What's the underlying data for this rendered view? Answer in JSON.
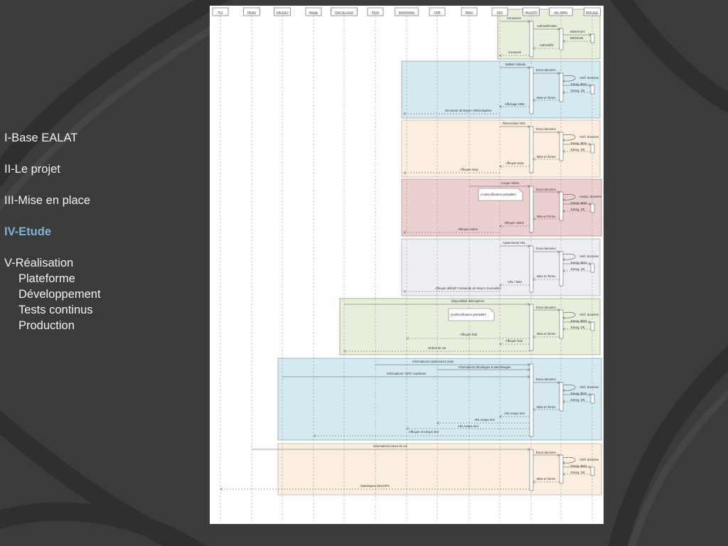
{
  "colors": {
    "slide_bg": "#3b3b3b",
    "outline_text": "#f2f2f2",
    "outline_active": "#7fb3d5",
    "frame_green": "#e8eedc",
    "frame_blue": "#d4e9f0",
    "frame_peach": "#fbeee0",
    "frame_red": "#eccfcf",
    "frame_grey": "#eceef4"
  },
  "outline": {
    "item1": "I-Base EALAT",
    "item2": "II-Le projet",
    "item3": "III-Mise en place",
    "item4": "IV-Etude",
    "item5": "V-Réalisation",
    "sub1": "Plateforme",
    "sub2": "Développement",
    "sub3": "Tests continus",
    "sub4": "Production"
  },
  "diagram": {
    "lifelines": [
      "PCI",
      "Pilotes",
      "GALILEO",
      "Mesge",
      "Chef de Corps",
      "Pilote",
      "BGH/Heli/av",
      "TWR",
      "Météo",
      "DDV",
      "HELIOPS",
      "Ser. Métier",
      "BDD SQL"
    ],
    "frame1": {
      "m1": "Connexion",
      "m2": "Authentification",
      "m3": "MD5HASH",
      "m4": "MD5SUM",
      "m5": "Authentifié",
      "m6": "Connecté"
    },
    "frame2": {
      "m1": "Bulletin héliodo",
      "m2": "Envoi données",
      "m3": "Vérif. données",
      "m4": "Enreg. BDD",
      "m5": "Enreg. OK",
      "m6": "Mise en forme",
      "m7": "Affichage DMH",
      "m8": "Demande de Moyen Hélicholoptère"
    },
    "frame3": {
      "m1": "Réservation HDV",
      "m2": "Envoi données",
      "m3": "Vérif. données",
      "m4": "Enreg. BDD",
      "m5": "Enreg. OK",
      "m6": "Mise en forme",
      "m7": "Affequin temp",
      "m8": "Affequin temp"
    },
    "frame4": {
      "m1": "Coupe météo",
      "note": "(Authentification préalable)",
      "m2": "Envoi données",
      "m3": "Analys. données",
      "m4": "Enreg. BDD",
      "m5": "Enreg. OK",
      "m6": "Mise en forme",
      "m7": "Affequin météo",
      "m8": "Affequin météo"
    },
    "frame5": {
      "m1": "Ajustements ARL",
      "m2": "Envoi données",
      "m3": "Vérif. données",
      "m4": "Enreg. BDD",
      "m5": "Enreg. OK",
      "m6": "Mise en forme",
      "m7": "ARL / DMJ",
      "m8": "Affequin définitif / Demande de Moyen Journalière"
    },
    "frame6": {
      "m1": "Disponibilité hélicoptères",
      "note": "(Authentification préalable)",
      "m2": "Envoi données",
      "m3": "Vérif. données",
      "m4": "Enreg. BDD",
      "m5": "Enreg. OK",
      "m6": "Mise en forme",
      "m7": "Affequin final",
      "m8": "Affequin final",
      "m9": "Ordres de vol"
    },
    "frame7": {
      "m1": "Informations maintenance piste",
      "m2": "Informations décollages & atterrissages",
      "m3": "Informations \"GPS\" machines",
      "m4": "Envoi données",
      "m5": "Vérif. données",
      "m6": "Enreg. BDD",
      "m7": "Enreg. OK",
      "m8": "Mise en forme",
      "m9": "ARL temps réel",
      "m10": "ARL temps réel",
      "m11": "ARL temps réel",
      "m12": "Affequin en temps réel"
    },
    "frame8": {
      "m1": "Informations retour de vol",
      "m2": "Envoi données",
      "m3": "Vérif. données",
      "m4": "Enreg. BDD",
      "m5": "Enreg. OK",
      "m6": "Mise en forme",
      "m7": "Statistiques HELIOPS"
    }
  }
}
